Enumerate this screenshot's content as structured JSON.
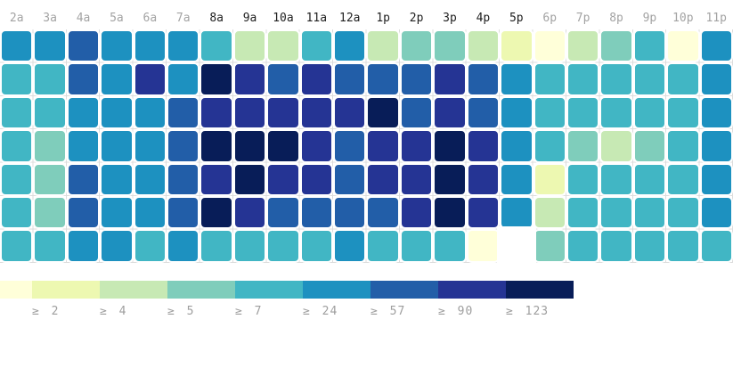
{
  "chart_data": {
    "type": "heatmap",
    "title": "",
    "x_axis_position": "top",
    "hours": [
      {
        "label": "2a",
        "dark": false
      },
      {
        "label": "3a",
        "dark": false
      },
      {
        "label": "4a",
        "dark": false
      },
      {
        "label": "5a",
        "dark": false
      },
      {
        "label": "6a",
        "dark": false
      },
      {
        "label": "7a",
        "dark": false
      },
      {
        "label": "8a",
        "dark": true
      },
      {
        "label": "9a",
        "dark": true
      },
      {
        "label": "10a",
        "dark": true
      },
      {
        "label": "11a",
        "dark": true
      },
      {
        "label": "12a",
        "dark": true
      },
      {
        "label": "1p",
        "dark": true
      },
      {
        "label": "2p",
        "dark": true
      },
      {
        "label": "3p",
        "dark": true
      },
      {
        "label": "4p",
        "dark": true
      },
      {
        "label": "5p",
        "dark": true
      },
      {
        "label": "6p",
        "dark": false
      },
      {
        "label": "7p",
        "dark": false
      },
      {
        "label": "8p",
        "dark": false
      },
      {
        "label": "9p",
        "dark": false
      },
      {
        "label": "10p",
        "dark": false
      },
      {
        "label": "11p",
        "dark": false
      }
    ],
    "row_count": 7,
    "palette": [
      "#ffffd9",
      "#edf8b1",
      "#c7e9b4",
      "#7fcdbb",
      "#41b6c4",
      "#1d91c0",
      "#225ea8",
      "#253494",
      "#081d58"
    ],
    "palette_bucket_labels": [
      "",
      "≥ 2",
      "≥ 4",
      "≥ 5",
      "≥ 7",
      "≥ 24",
      "≥ 57",
      "≥ 90",
      "≥ 123"
    ],
    "grid": [
      [
        5,
        5,
        6,
        5,
        5,
        5,
        4,
        2,
        2,
        4,
        5,
        2,
        3,
        3,
        2,
        1,
        0,
        2,
        3,
        4,
        0,
        5
      ],
      [
        4,
        4,
        6,
        5,
        7,
        5,
        8,
        7,
        6,
        7,
        6,
        6,
        6,
        7,
        6,
        5,
        4,
        4,
        4,
        4,
        4,
        5
      ],
      [
        4,
        4,
        5,
        5,
        5,
        6,
        7,
        7,
        7,
        7,
        7,
        8,
        6,
        7,
        6,
        5,
        4,
        4,
        4,
        4,
        4,
        5
      ],
      [
        4,
        3,
        5,
        5,
        5,
        6,
        8,
        8,
        8,
        7,
        6,
        7,
        7,
        8,
        7,
        5,
        4,
        3,
        2,
        3,
        4,
        5
      ],
      [
        4,
        3,
        6,
        5,
        5,
        6,
        7,
        8,
        7,
        7,
        6,
        7,
        7,
        8,
        7,
        5,
        1,
        4,
        4,
        4,
        4,
        5
      ],
      [
        4,
        3,
        6,
        5,
        5,
        6,
        8,
        7,
        6,
        6,
        6,
        6,
        7,
        8,
        7,
        5,
        2,
        4,
        4,
        4,
        4,
        5
      ],
      [
        4,
        4,
        5,
        5,
        4,
        5,
        4,
        4,
        4,
        4,
        5,
        4,
        4,
        4,
        0,
        null,
        3,
        4,
        4,
        4,
        4,
        4
      ]
    ],
    "legend": {
      "position": "bottom-left",
      "swatches": [
        {
          "color": "#ffffd9",
          "label": ""
        },
        {
          "color": "#edf8b1",
          "label": "≥ 2"
        },
        {
          "color": "#c7e9b4",
          "label": "≥ 4"
        },
        {
          "color": "#7fcdbb",
          "label": "≥ 5"
        },
        {
          "color": "#41b6c4",
          "label": "≥ 7"
        },
        {
          "color": "#1d91c0",
          "label": "≥ 24"
        },
        {
          "color": "#225ea8",
          "label": "≥ 57"
        },
        {
          "color": "#253494",
          "label": "≥ 90"
        },
        {
          "color": "#081d58",
          "label": "≥ 123"
        }
      ]
    }
  },
  "style": {
    "accent_navy": "#081d58",
    "label_gray": "#a3a3a3",
    "label_dark": "#1f1f1f",
    "grid_line": "#dcdcdc",
    "background": "#ffffff"
  }
}
